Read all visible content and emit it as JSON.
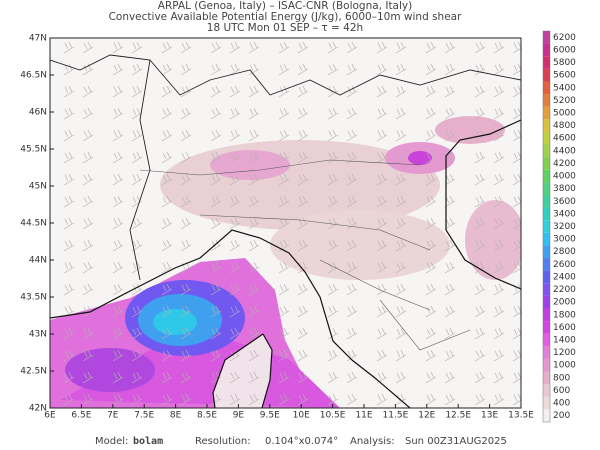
{
  "header": {
    "line1": "ARPAL (Genoa, Italy)  –  ISAC-CNR (Bologna, Italy)",
    "line2": "Convective Available Potential Energy (J/kg), 6000–10m wind shear",
    "line3": "18 UTC Mon 01 SEP  –  τ = 42h"
  },
  "map": {
    "lat_labels": [
      "47N",
      "46.5N",
      "46N",
      "45.5N",
      "45N",
      "44.5N",
      "44N",
      "43.5N",
      "43N",
      "42.5N",
      "42N"
    ],
    "lon_labels": [
      "6E",
      "6.5E",
      "7E",
      "7.5E",
      "8E",
      "8.5E",
      "9E",
      "9.5E",
      "10E",
      "10.5E",
      "11E",
      "11.5E",
      "12E",
      "12.5E",
      "13E",
      "13.5E"
    ]
  },
  "colorbar": {
    "levels": [
      200,
      400,
      600,
      800,
      1000,
      1200,
      1400,
      1600,
      1800,
      2000,
      2200,
      2400,
      2600,
      2800,
      3000,
      3200,
      3400,
      3600,
      3800,
      4000,
      4200,
      4400,
      4600,
      4800,
      5000,
      5200,
      5400,
      5600,
      5800,
      6000,
      6200
    ],
    "colors": [
      "#f4f0f0",
      "#ecdcdc",
      "#e8c8d0",
      "#e4b0c8",
      "#e498d0",
      "#e080d8",
      "#e060e0",
      "#d048e0",
      "#c040e0",
      "#a040e8",
      "#8050f0",
      "#6060f0",
      "#5080f0",
      "#40a0f0",
      "#30c0f0",
      "#30d0e0",
      "#30d0c0",
      "#40d0a0",
      "#50d080",
      "#60d060",
      "#80d050",
      "#a0d050",
      "#c0d040",
      "#d8c040",
      "#e0a040",
      "#e08040",
      "#e06040",
      "#d84050",
      "#d03070",
      "#c83090",
      "#c040a0"
    ]
  },
  "footer": {
    "model_label": "Model:",
    "model": "bolam",
    "resolution_label": "Resolution:",
    "resolution": "0.104°x0.074°",
    "analysis_label": "Analysis:",
    "analysis": "Sun 00Z31AUG2025"
  }
}
